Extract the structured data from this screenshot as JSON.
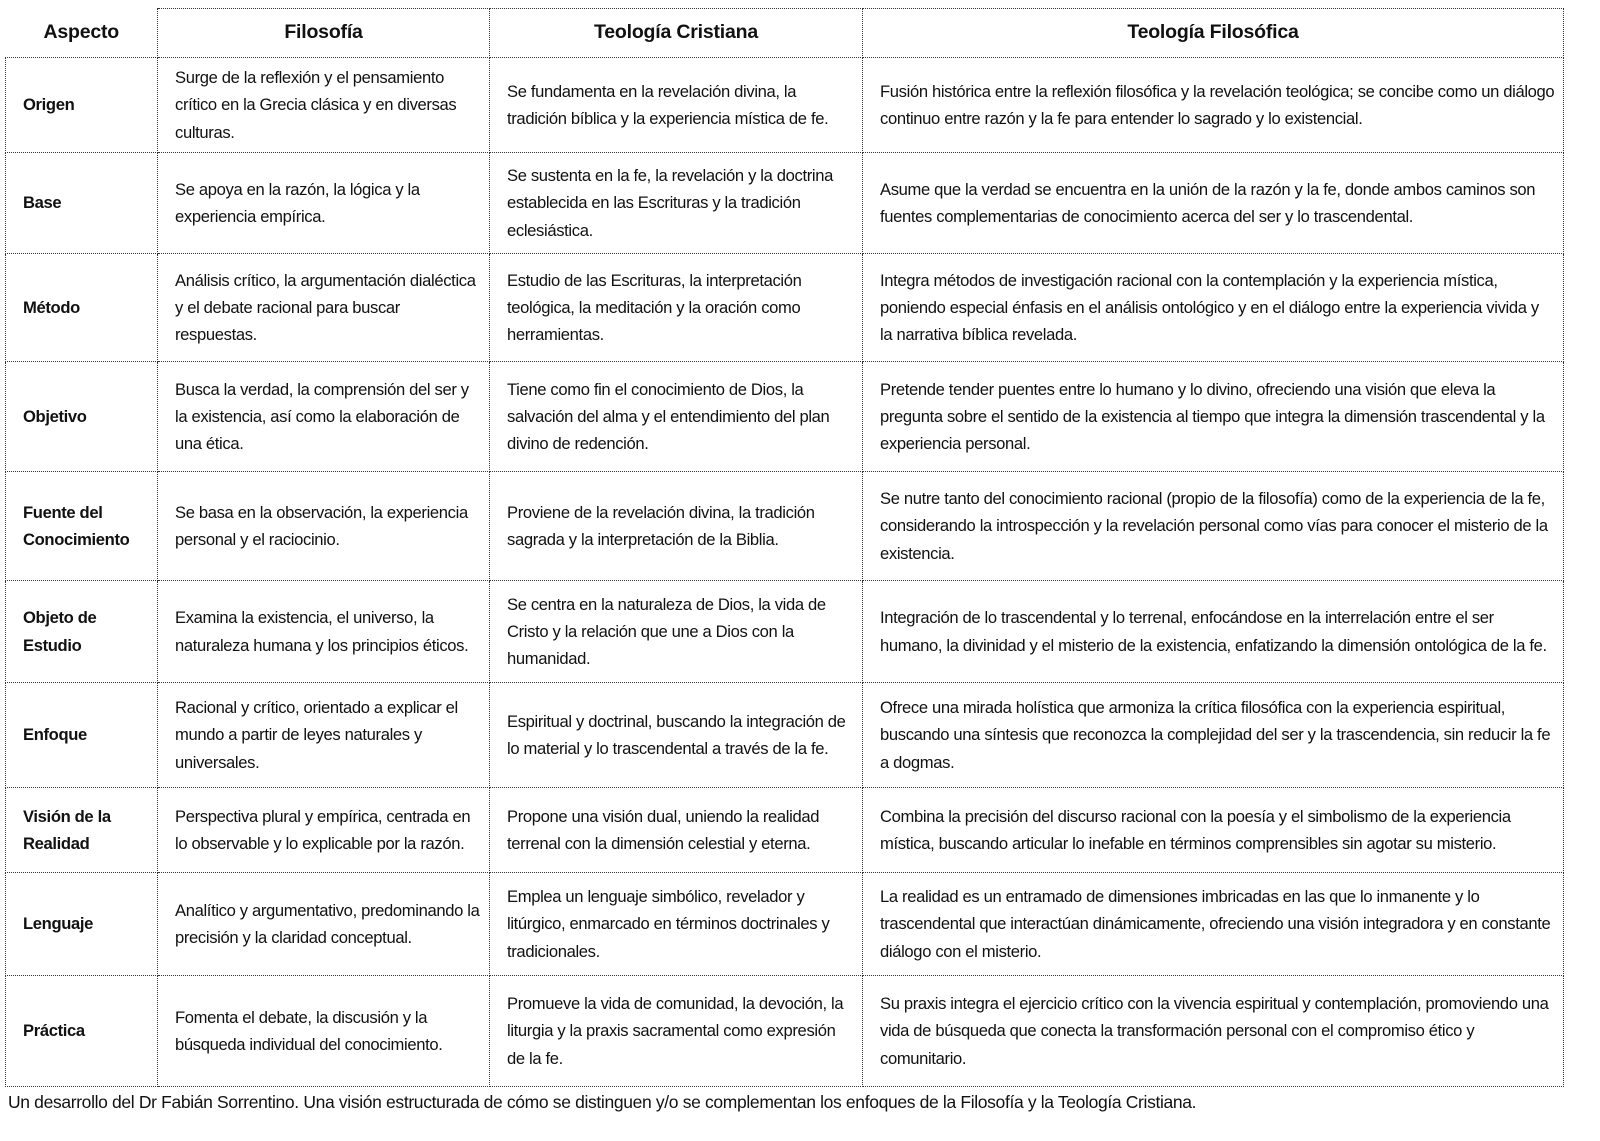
{
  "table": {
    "headers": [
      "Aspecto",
      "Filosofía",
      "Teología Cristiana",
      "Teología Filosófica"
    ],
    "rows": [
      {
        "aspect": "Origen",
        "filosofia": "Surge de la reflexión y el pensamiento crítico en la Grecia clásica y en diversas culturas.",
        "teologia": "Se fundamenta en la revelación divina, la tradición bíblica y la experiencia mística de fe.",
        "teologia_filosofica": "Fusión histórica entre la reflexión filosófica y la revelación teológica; se concibe como un diálogo continuo entre razón y la fe para entender lo sagrado y lo existencial."
      },
      {
        "aspect": "Base",
        "filosofia": "Se apoya en la razón, la lógica y la experiencia empírica.",
        "teologia": "Se sustenta en la fe, la revelación y la doctrina establecida en las Escrituras y la tradición eclesiástica.",
        "teologia_filosofica": "Asume que la verdad se encuentra en la unión de la razón y la fe, donde ambos caminos son fuentes complementarias de conocimiento acerca del ser y lo trascendental."
      },
      {
        "aspect": "Método",
        "filosofia": "Análisis crítico, la argumentación dialéctica y el debate racional para buscar respuestas.",
        "teologia": "Estudio de las Escrituras, la interpretación teológica, la meditación y la oración como herramientas.",
        "teologia_filosofica": "Integra métodos de investigación racional con la contemplación y la experiencia mística, poniendo especial énfasis en el análisis ontológico y en el diálogo entre la experiencia vivida y la narrativa bíblica revelada."
      },
      {
        "aspect": "Objetivo",
        "filosofia": "Busca la verdad, la comprensión del ser y la existencia, así como la elaboración de una ética.",
        "teologia": "Tiene como fin el conocimiento de Dios, la salvación del alma y el entendimiento del plan divino de redención.",
        "teologia_filosofica": "Pretende tender puentes entre lo humano y lo divino, ofreciendo una visión que eleva la pregunta sobre el sentido de la existencia al tiempo que integra la dimensión trascendental y la experiencia personal."
      },
      {
        "aspect": "Fuente del Conocimiento",
        "filosofia": "Se basa en la observación, la experiencia personal y el raciocinio.",
        "teologia": "Proviene de la revelación divina, la tradición sagrada y la interpretación de la Biblia.",
        "teologia_filosofica": "Se nutre tanto del conocimiento racional (propio de la filosofía) como de la experiencia de la fe, considerando la introspección y la revelación personal como vías para conocer el misterio de la existencia."
      },
      {
        "aspect": "Objeto de Estudio",
        "filosofia": "Examina la existencia, el universo, la naturaleza humana y los principios éticos.",
        "teologia": "Se centra en la naturaleza de Dios, la vida de Cristo y la relación que une a Dios con la humanidad.",
        "teologia_filosofica": "Integración de lo trascendental y lo terrenal, enfocándose en la interrelación entre el ser humano, la divinidad y el misterio de la existencia, enfatizando la dimensión ontológica de la fe."
      },
      {
        "aspect": "Enfoque",
        "filosofia": "Racional y crítico, orientado a explicar el mundo a partir de leyes naturales y universales.",
        "teologia": "Espiritual y doctrinal, buscando la integración de lo material y lo trascendental a través de la fe.",
        "teologia_filosofica": "Ofrece una mirada holística que armoniza la crítica filosófica con la experiencia espiritual, buscando una síntesis que reconozca la complejidad del ser y la trascendencia, sin reducir la fe a dogmas."
      },
      {
        "aspect": "Visión de la Realidad",
        "filosofia": "Perspectiva plural y empírica, centrada en lo observable y lo explicable por la razón.",
        "teologia": "Propone una visión dual, uniendo la realidad terrenal con la dimensión celestial y eterna.",
        "teologia_filosofica": "Combina la precisión del discurso racional con la poesía y el simbolismo de la experiencia mística, buscando articular lo inefable en términos comprensibles sin agotar su misterio."
      },
      {
        "aspect": "Lenguaje",
        "filosofia": "Analítico y argumentativo, predominando la precisión y la claridad conceptual.",
        "teologia": "Emplea un lenguaje simbólico, revelador y litúrgico, enmarcado en términos doctrinales y tradicionales.",
        "teologia_filosofica": "La realidad es un entramado de dimensiones imbricadas en las que lo inmanente y lo trascendental que interactúan dinámicamente, ofreciendo una visión integradora y en constante diálogo con el misterio."
      },
      {
        "aspect": "Práctica",
        "filosofia": "Fomenta el debate, la discusión y la búsqueda individual del conocimiento.",
        "teologia": "Promueve la vida de comunidad, la devoción, la liturgia y la praxis sacramental como expresión de la fe.",
        "teologia_filosofica": "Su praxis integra el ejercicio crítico con la vivencia espiritual y contemplación, promoviendo una vida de búsqueda que conecta la transformación personal con el compromiso ético y comunitario."
      }
    ]
  },
  "footer": "Un desarrollo del Dr Fabián Sorrentino. Una visión estructurada de cómo se distinguen y/o se complementan los enfoques de la Filosofía y la Teología Cristiana."
}
